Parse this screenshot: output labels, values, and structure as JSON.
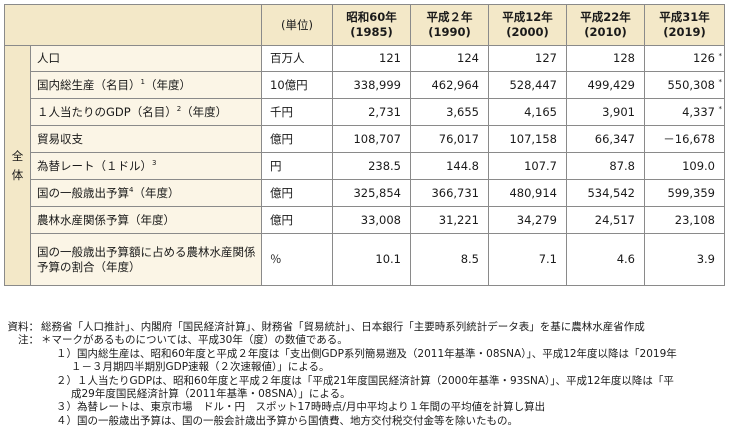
{
  "table": {
    "unit_header": "(単位)",
    "years": [
      {
        "era": "昭和60年",
        "ad": "(1985)"
      },
      {
        "era": "平成２年",
        "ad": "(1990)"
      },
      {
        "era": "平成12年",
        "ad": "(2000)"
      },
      {
        "era": "平成22年",
        "ad": "(2010)"
      },
      {
        "era": "平成31年",
        "ad": "(2019)"
      }
    ],
    "side_label": [
      "全",
      "体"
    ],
    "rows": [
      {
        "label": "人口",
        "sup": "",
        "suffix": "",
        "unit": "百万人",
        "values": [
          "121",
          "124",
          "127",
          "128",
          "126"
        ],
        "marks": [
          "",
          "",
          "",
          "",
          "*"
        ]
      },
      {
        "label": "国内総生産（名目）",
        "sup": "1",
        "suffix": "（年度）",
        "unit": "10億円",
        "values": [
          "338,999",
          "462,964",
          "528,447",
          "499,429",
          "550,308"
        ],
        "marks": [
          "",
          "",
          "",
          "",
          "*"
        ]
      },
      {
        "label": "１人当たりのGDP（名目）",
        "sup": "2",
        "suffix": "（年度）",
        "unit": "千円",
        "values": [
          "2,731",
          "3,655",
          "4,165",
          "3,901",
          "4,337"
        ],
        "marks": [
          "",
          "",
          "",
          "",
          "*"
        ]
      },
      {
        "label": "貿易収支",
        "sup": "",
        "suffix": "",
        "unit": "億円",
        "values": [
          "108,707",
          "76,017",
          "107,158",
          "66,347",
          "－16,678"
        ],
        "marks": [
          "",
          "",
          "",
          "",
          ""
        ]
      },
      {
        "label": "為替レート（１ドル）",
        "sup": "3",
        "suffix": "",
        "unit": "円",
        "values": [
          "238.5",
          "144.8",
          "107.7",
          "87.8",
          "109.0"
        ],
        "marks": [
          "",
          "",
          "",
          "",
          ""
        ]
      },
      {
        "label": "国の一般歳出予算",
        "sup": "4",
        "suffix": "（年度）",
        "unit": "億円",
        "values": [
          "325,854",
          "366,731",
          "480,914",
          "534,542",
          "599,359"
        ],
        "marks": [
          "",
          "",
          "",
          "",
          ""
        ]
      },
      {
        "label": "農林水産関係予算（年度）",
        "sup": "",
        "suffix": "",
        "unit": "億円",
        "values": [
          "33,008",
          "31,221",
          "34,279",
          "24,517",
          "23,108"
        ],
        "marks": [
          "",
          "",
          "",
          "",
          ""
        ]
      },
      {
        "label": "国の一般歳出予算額に占める農林水産関係予算の割合（年度）",
        "sup": "",
        "suffix": "",
        "unit": "％",
        "values": [
          "10.1",
          "8.5",
          "7.1",
          "4.6",
          "3.9"
        ],
        "marks": [
          "",
          "",
          "",
          "",
          ""
        ]
      }
    ]
  },
  "notes": {
    "source_key": "資料：",
    "source_text": "総務省「人口推計」、内閣府「国民経済計算」、財務省「貿易統計」、日本銀行「主要時系列統計データ表」を基に農林水産省作成",
    "note_key": "注：",
    "note_intro": "＊マークがあるものについては、平成30年（度）の数値である。",
    "items": [
      {
        "line1": "１）国内総生産は、昭和60年度と平成２年度は「支出側GDP系列簡易遡及（2011年基準・08SNA）」、平成12年度以降は「2019年",
        "line2": "１－３月期四半期別GDP速報（２次速報値）」による。"
      },
      {
        "line1": "２）１人当たりGDPは、昭和60年度と平成２年度は「平成21年度国民経済計算（2000年基準・93SNA）」、平成12年度以降は「平",
        "line2": "成29年度国民経済計算（2011年基準・08SNA）」による。"
      },
      {
        "line1": "３）為替レートは、東京市場　ドル・円　スポット17時時点/月中平均より１年間の平均値を計算し算出",
        "line2": ""
      },
      {
        "line1": "４）国の一般歳出予算は、国の一般会計歳出予算から国債費、地方交付税交付金等を除いたもの。",
        "line2": ""
      }
    ]
  }
}
